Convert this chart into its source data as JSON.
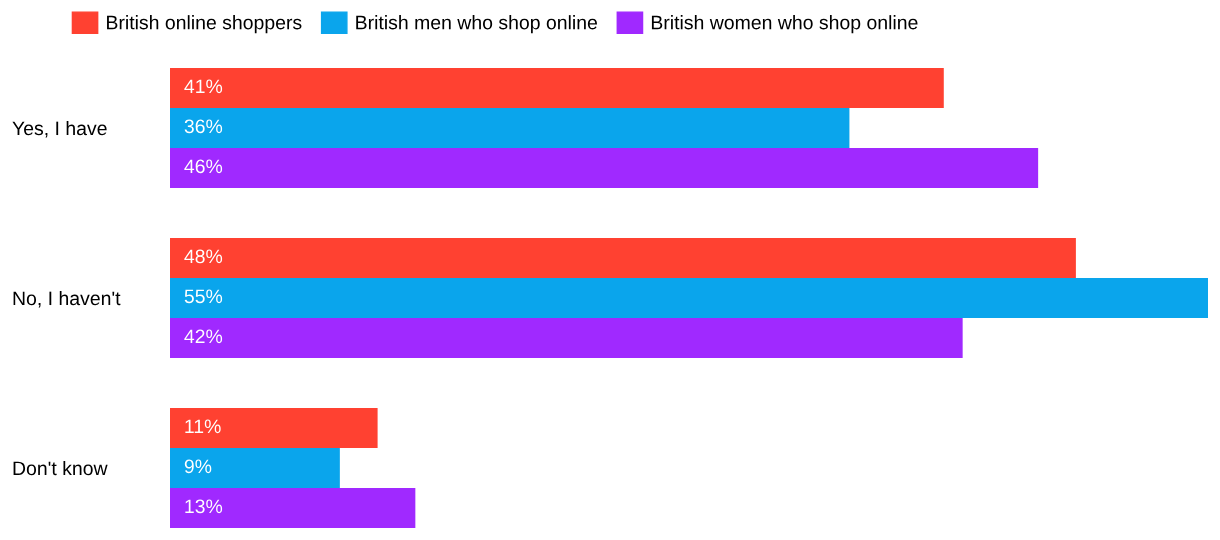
{
  "chart_data": {
    "type": "bar",
    "orientation": "horizontal",
    "categories": [
      "Yes, I have",
      "No, I haven't",
      "Don't know"
    ],
    "series": [
      {
        "name": "British online shoppers",
        "color": "#ff4131",
        "values": [
          41,
          48,
          11
        ],
        "value_labels": [
          "41%",
          "48%",
          "11%"
        ]
      },
      {
        "name": "British men who shop online",
        "color": "#0aa5ec",
        "values": [
          36,
          55,
          9
        ],
        "value_labels": [
          "36%",
          "55%",
          "9%"
        ]
      },
      {
        "name": "British women who shop online",
        "color": "#a029ff",
        "values": [
          46,
          42,
          13
        ],
        "value_labels": [
          "46%",
          "42%",
          "13%"
        ]
      }
    ],
    "legend": "top",
    "grid": false,
    "tick_labels": "y"
  }
}
